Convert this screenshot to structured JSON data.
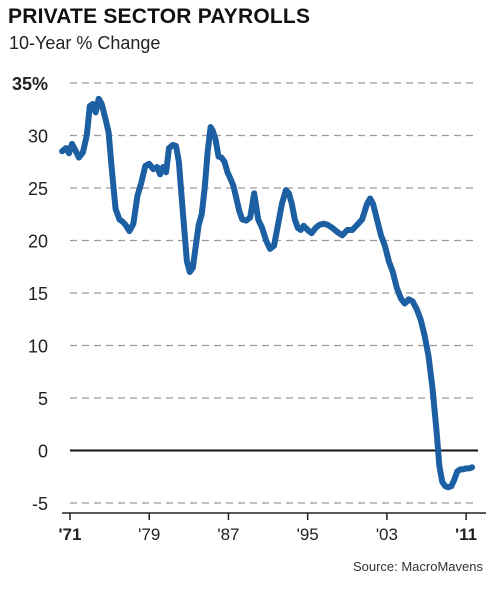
{
  "title": "PRIVATE SECTOR PAYROLLS",
  "subtitle": "10-Year % Change",
  "source": "Source: MacroMavens",
  "colors": {
    "line": "#1c5fa3",
    "grid": "#9a9a9a",
    "zero": "#111111",
    "text": "#222222"
  },
  "chart_data": {
    "type": "line",
    "title": "PRIVATE SECTOR PAYROLLS",
    "subtitle": "10-Year % Change",
    "xlabel": "",
    "ylabel": "",
    "xlim": [
      1971,
      2012.2
    ],
    "ylim": [
      -5,
      35
    ],
    "y_ticks": [
      {
        "value": 35,
        "label": "35%",
        "bold": true
      },
      {
        "value": 30,
        "label": "30"
      },
      {
        "value": 25,
        "label": "25"
      },
      {
        "value": 20,
        "label": "20"
      },
      {
        "value": 15,
        "label": "15"
      },
      {
        "value": 10,
        "label": "10"
      },
      {
        "value": 5,
        "label": "5"
      },
      {
        "value": 0,
        "label": "0"
      },
      {
        "value": -5,
        "label": "-5"
      }
    ],
    "x_ticks": [
      {
        "value": 1971,
        "label": "'71",
        "bold": true
      },
      {
        "value": 1979,
        "label": "'79"
      },
      {
        "value": 1987,
        "label": "'87"
      },
      {
        "value": 1995,
        "label": "'95"
      },
      {
        "value": 2003,
        "label": "'03"
      },
      {
        "value": 2011,
        "label": "'11",
        "bold": true
      }
    ],
    "grid": true,
    "series": [
      {
        "x": [
          1970.2,
          1970.6,
          1970.9,
          1971.2,
          1971.6,
          1971.9,
          1972.3,
          1972.7,
          1973.0,
          1973.3,
          1973.6,
          1973.9,
          1974.2,
          1974.6,
          1974.9,
          1975.2,
          1975.6,
          1976.0,
          1976.3,
          1976.6,
          1977.0,
          1977.4,
          1977.8,
          1978.2,
          1978.6,
          1979.0,
          1979.4,
          1979.8,
          1980.1,
          1980.4,
          1980.7,
          1981.0,
          1981.4,
          1981.7,
          1982.0,
          1982.2,
          1982.5,
          1982.8,
          1983.1,
          1983.4,
          1983.7,
          1984.0,
          1984.3,
          1984.6,
          1984.9,
          1985.2,
          1985.4,
          1985.7,
          1986.0,
          1986.3,
          1986.6,
          1986.9,
          1987.2,
          1987.5,
          1987.8,
          1988.1,
          1988.4,
          1988.8,
          1989.2,
          1989.6,
          1990.0,
          1990.4,
          1990.8,
          1991.2,
          1991.6,
          1992.0,
          1992.4,
          1992.8,
          1993.1,
          1993.4,
          1993.7,
          1994.0,
          1994.3,
          1994.6,
          1995.0,
          1995.4,
          1995.8,
          1996.2,
          1996.6,
          1997.0,
          1997.5,
          1998.0,
          1998.5,
          1999.0,
          1999.5,
          2000.0,
          2000.5,
          2001.0,
          2001.3,
          2001.6,
          2002.0,
          2002.4,
          2002.8,
          2003.2,
          2003.6,
          2004.0,
          2004.4,
          2004.8,
          2005.2,
          2005.6,
          2006.0,
          2006.4,
          2006.8,
          2007.2,
          2007.6,
          2008.0,
          2008.3,
          2008.6,
          2008.9,
          2009.2,
          2009.5,
          2009.8,
          2010.1,
          2010.4,
          2010.7,
          2011.0,
          2011.3,
          2011.6
        ],
        "y": [
          28.5,
          28.8,
          28.3,
          29.2,
          28.5,
          27.9,
          28.4,
          30.0,
          32.8,
          33.0,
          32.2,
          33.5,
          33.0,
          31.5,
          30.3,
          27.0,
          23.0,
          22.0,
          21.8,
          21.5,
          20.9,
          21.6,
          24.2,
          25.5,
          27.1,
          27.3,
          26.8,
          27.0,
          26.3,
          27.0,
          26.5,
          28.8,
          29.1,
          29.0,
          27.5,
          25.0,
          21.5,
          18.0,
          17.0,
          17.4,
          19.5,
          21.5,
          22.5,
          25.0,
          28.5,
          30.8,
          30.5,
          29.6,
          28.0,
          27.9,
          27.5,
          26.5,
          25.9,
          25.2,
          24.0,
          22.8,
          22.0,
          21.9,
          22.2,
          24.5,
          22.0,
          21.2,
          20.0,
          19.2,
          19.5,
          21.5,
          23.5,
          24.8,
          24.5,
          23.5,
          22.0,
          21.2,
          21.0,
          21.4,
          21.0,
          20.7,
          21.2,
          21.5,
          21.6,
          21.5,
          21.2,
          20.8,
          20.5,
          21.0,
          21.0,
          21.5,
          22.0,
          23.5,
          24.0,
          23.5,
          22.0,
          20.5,
          19.5,
          18.0,
          17.0,
          15.5,
          14.5,
          14.0,
          14.4,
          14.2,
          13.5,
          12.5,
          11.0,
          9.0,
          6.0,
          2.0,
          -1.5,
          -3.0,
          -3.4,
          -3.5,
          -3.4,
          -2.8,
          -2.0,
          -1.8,
          -1.8,
          -1.7,
          -1.7,
          -1.6
        ]
      }
    ]
  }
}
